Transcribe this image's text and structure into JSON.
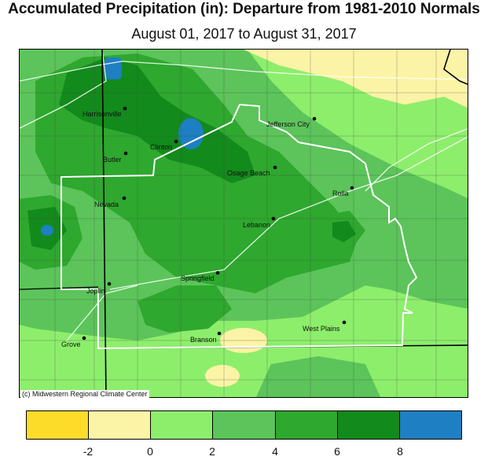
{
  "title": "Accumulated Precipitation (in): Departure from 1981-2010 Normals",
  "subtitle": "August 01, 2017 to August 31, 2017",
  "credit": "(c) Midwestern Regional Climate Center",
  "map": {
    "cities": [
      {
        "name": "Harrisonville"
      },
      {
        "name": "Clinton"
      },
      {
        "name": "Butler"
      },
      {
        "name": "Jefferson City"
      },
      {
        "name": "Osage Beach"
      },
      {
        "name": "Rolla"
      },
      {
        "name": "Nevada"
      },
      {
        "name": "Lebanon"
      },
      {
        "name": "Springfield"
      },
      {
        "name": "Joplin"
      },
      {
        "name": "Branson"
      },
      {
        "name": "West Plains"
      },
      {
        "name": "Grove"
      }
    ]
  },
  "legend": {
    "colors": [
      "#fcdc28",
      "#fbf3a6",
      "#8dee6c",
      "#5cc45a",
      "#2ea82e",
      "#138a1c",
      "#1e7fc2"
    ],
    "ticks": [
      "-2",
      "0",
      "2",
      "4",
      "6",
      "8"
    ]
  }
}
